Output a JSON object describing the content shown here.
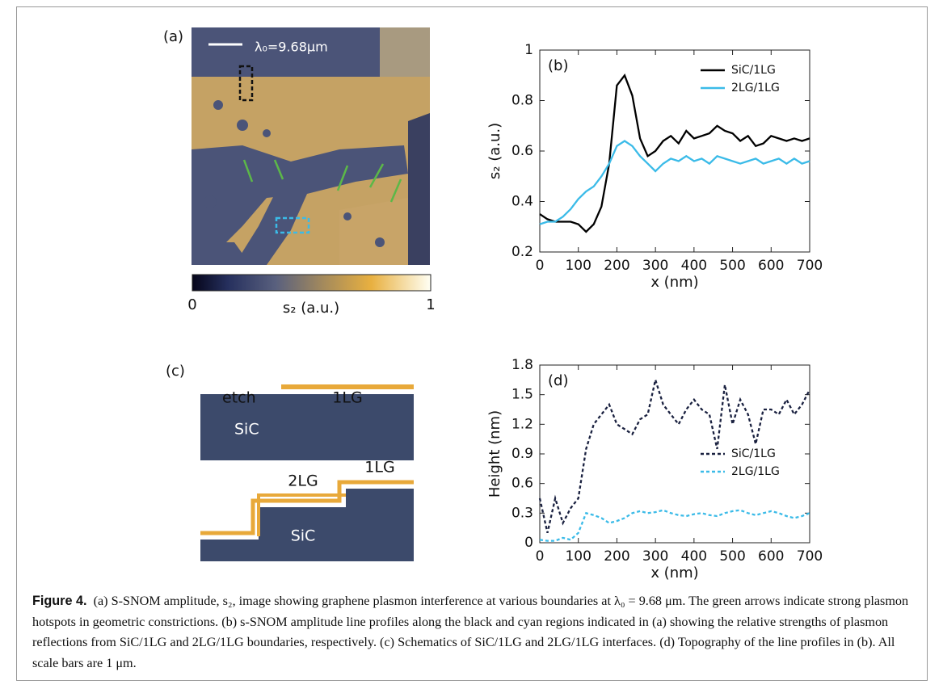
{
  "panel_a": {
    "label": "(a)",
    "scale_label": "λ₀=9.68μm",
    "colorbar": {
      "label": "s₂ (a.u.)",
      "ticks": [
        0,
        1
      ]
    }
  },
  "panel_c": {
    "label": "(c)",
    "top": {
      "etch": "etch",
      "layer": "1LG",
      "substrate": "SiC"
    },
    "bottom": {
      "layer_left": "2LG",
      "layer_right": "1LG",
      "substrate": "SiC"
    }
  },
  "chart_data": [
    {
      "type": "line",
      "panel_label": "(b)",
      "x_label": "x (nm)",
      "y_label": "s₂ (a.u.)",
      "x": [
        0,
        20,
        40,
        60,
        80,
        100,
        120,
        140,
        160,
        180,
        200,
        220,
        240,
        260,
        280,
        300,
        320,
        340,
        360,
        380,
        400,
        420,
        440,
        460,
        480,
        500,
        520,
        540,
        560,
        580,
        600,
        620,
        640,
        660,
        680,
        700
      ],
      "series": [
        {
          "name": "SiC/1LG",
          "color": "#000000",
          "values": [
            0.35,
            0.33,
            0.32,
            0.32,
            0.32,
            0.31,
            0.28,
            0.31,
            0.38,
            0.55,
            0.86,
            0.9,
            0.82,
            0.65,
            0.58,
            0.6,
            0.64,
            0.66,
            0.63,
            0.68,
            0.65,
            0.66,
            0.67,
            0.7,
            0.68,
            0.67,
            0.64,
            0.66,
            0.62,
            0.63,
            0.66,
            0.65,
            0.64,
            0.65,
            0.64,
            0.65
          ]
        },
        {
          "name": "2LG/1LG",
          "color": "#3bbbe8",
          "values": [
            0.31,
            0.32,
            0.32,
            0.34,
            0.37,
            0.41,
            0.44,
            0.46,
            0.5,
            0.55,
            0.62,
            0.64,
            0.62,
            0.58,
            0.55,
            0.52,
            0.55,
            0.57,
            0.56,
            0.58,
            0.56,
            0.57,
            0.55,
            0.58,
            0.57,
            0.56,
            0.55,
            0.56,
            0.57,
            0.55,
            0.56,
            0.57,
            0.55,
            0.57,
            0.55,
            0.56
          ]
        }
      ],
      "line_style": "solid",
      "legend": "upper right",
      "xlim": [
        0,
        700
      ],
      "xticks": [
        0,
        100,
        200,
        300,
        400,
        500,
        600,
        700
      ],
      "ylim": [
        0.2,
        1
      ],
      "yticks": [
        0.2,
        0.4,
        0.6,
        0.8,
        1
      ]
    },
    {
      "type": "line",
      "panel_label": "(d)",
      "x_label": "x (nm)",
      "y_label": "Height (nm)",
      "x": [
        0,
        20,
        40,
        60,
        80,
        100,
        120,
        140,
        160,
        180,
        200,
        220,
        240,
        260,
        280,
        300,
        320,
        340,
        360,
        380,
        400,
        420,
        440,
        460,
        480,
        500,
        520,
        540,
        560,
        580,
        600,
        620,
        640,
        660,
        680,
        700
      ],
      "series": [
        {
          "name": "SiC/1LG",
          "color": "#1a2140",
          "values": [
            0.45,
            0.1,
            0.45,
            0.2,
            0.35,
            0.45,
            0.95,
            1.2,
            1.3,
            1.4,
            1.2,
            1.15,
            1.1,
            1.25,
            1.3,
            1.65,
            1.4,
            1.3,
            1.2,
            1.35,
            1.45,
            1.35,
            1.3,
            0.95,
            1.6,
            1.2,
            1.45,
            1.3,
            1.0,
            1.35,
            1.35,
            1.3,
            1.45,
            1.3,
            1.4,
            1.55
          ]
        },
        {
          "name": "2LG/1LG",
          "color": "#3bbbe8",
          "values": [
            0.03,
            0.02,
            0.02,
            0.05,
            0.03,
            0.1,
            0.3,
            0.28,
            0.25,
            0.2,
            0.22,
            0.25,
            0.3,
            0.32,
            0.3,
            0.31,
            0.33,
            0.3,
            0.28,
            0.27,
            0.29,
            0.3,
            0.28,
            0.27,
            0.3,
            0.32,
            0.33,
            0.3,
            0.28,
            0.3,
            0.32,
            0.3,
            0.27,
            0.25,
            0.27,
            0.3
          ]
        }
      ],
      "line_style": "dashed",
      "legend": "lower right",
      "xlim": [
        0,
        700
      ],
      "xticks": [
        0,
        100,
        200,
        300,
        400,
        500,
        600,
        700
      ],
      "ylim": [
        0,
        1.8
      ],
      "yticks": [
        0,
        0.3,
        0.6,
        0.9,
        1.2,
        1.5,
        1.8
      ]
    }
  ],
  "caption": {
    "label": "Figure 4.",
    "text": "(a) S-SNOM amplitude, s₂, image showing graphene plasmon interference at various boundaries at λ₀ = 9.68 μm. The green arrows indicate strong plasmon hotspots in geometric constrictions. (b) s-SNOM amplitude line profiles along the black and cyan regions indicated in (a) showing the relative strengths of plasmon reflections from SiC/1LG and 2LG/1LG boundaries, respectively. (c) Schematics of SiC/1LG and 2LG/1LG interfaces. (d) Topography of the line profiles in (b). All scale bars are 1 μm."
  }
}
